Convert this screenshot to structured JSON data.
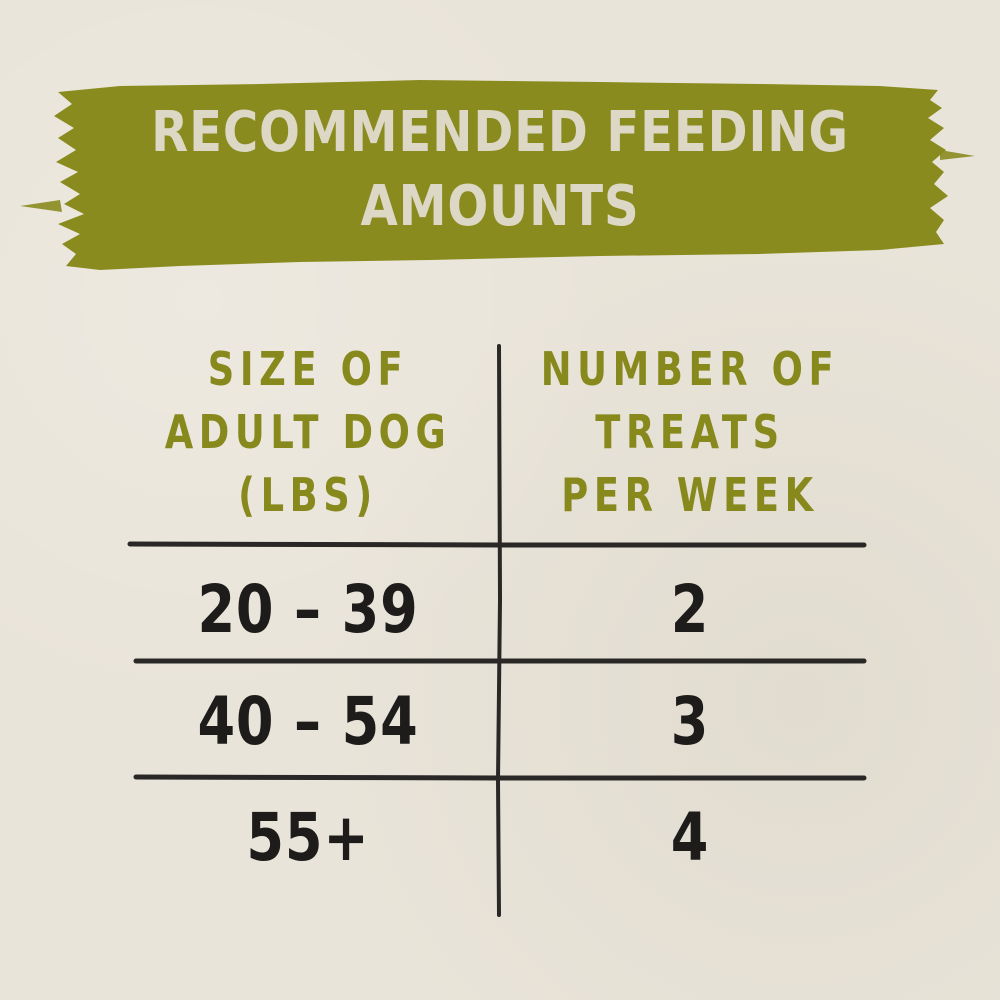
{
  "banner": {
    "title_line1": "RECOMMENDED FEEDING",
    "title_line2": "AMOUNTS",
    "color": "#8a8b1e"
  },
  "table": {
    "headers": {
      "left": [
        "SIZE OF",
        "ADULT DOG",
        "(LBS)"
      ],
      "right": [
        "NUMBER OF",
        "TREATS",
        "PER WEEK"
      ]
    },
    "rows": [
      {
        "size": "20 – 39",
        "treats": "2"
      },
      {
        "size": "40 – 54",
        "treats": "3"
      },
      {
        "size": "55+",
        "treats": "4"
      }
    ]
  },
  "colors": {
    "background": "#e9e4d9",
    "header_text": "#87891d",
    "value_text": "#1e1c1b",
    "banner_text": "#ddd8c6"
  }
}
